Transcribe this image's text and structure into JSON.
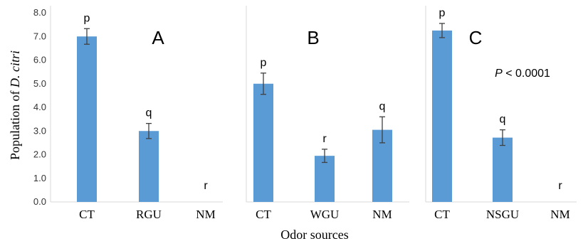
{
  "chart_data": {
    "type": "bar",
    "ylabel_prefix": "Population of ",
    "ylabel_italic": "D. citri",
    "xlabel": "Odor sources",
    "ylim": [
      0,
      8
    ],
    "yticks": [
      "0.0",
      "1.0",
      "2.0",
      "3.0",
      "4.0",
      "5.0",
      "6.0",
      "7.0",
      "8.0"
    ],
    "bar_color": "#5b9bd5",
    "error_color": "#404040",
    "panels": [
      {
        "label": "A",
        "categories": [
          "CT",
          "RGU",
          "NM"
        ],
        "values": [
          7.0,
          3.0,
          0.0
        ],
        "errors": [
          0.33,
          0.32,
          0.0
        ],
        "letters": [
          "p",
          "q",
          "r"
        ]
      },
      {
        "label": "B",
        "categories": [
          "CT",
          "WGU",
          "NM"
        ],
        "values": [
          5.0,
          1.95,
          3.05
        ],
        "errors": [
          0.45,
          0.28,
          0.55
        ],
        "letters": [
          "p",
          "r",
          "q"
        ]
      },
      {
        "label": "C",
        "categories": [
          "CT",
          "NSGU",
          "NM"
        ],
        "values": [
          7.25,
          2.72,
          0.0
        ],
        "errors": [
          0.3,
          0.33,
          0.0
        ],
        "letters": [
          "p",
          "q",
          "r"
        ],
        "annotation_italic": "P",
        "annotation_rest": " < 0.0001"
      }
    ]
  }
}
